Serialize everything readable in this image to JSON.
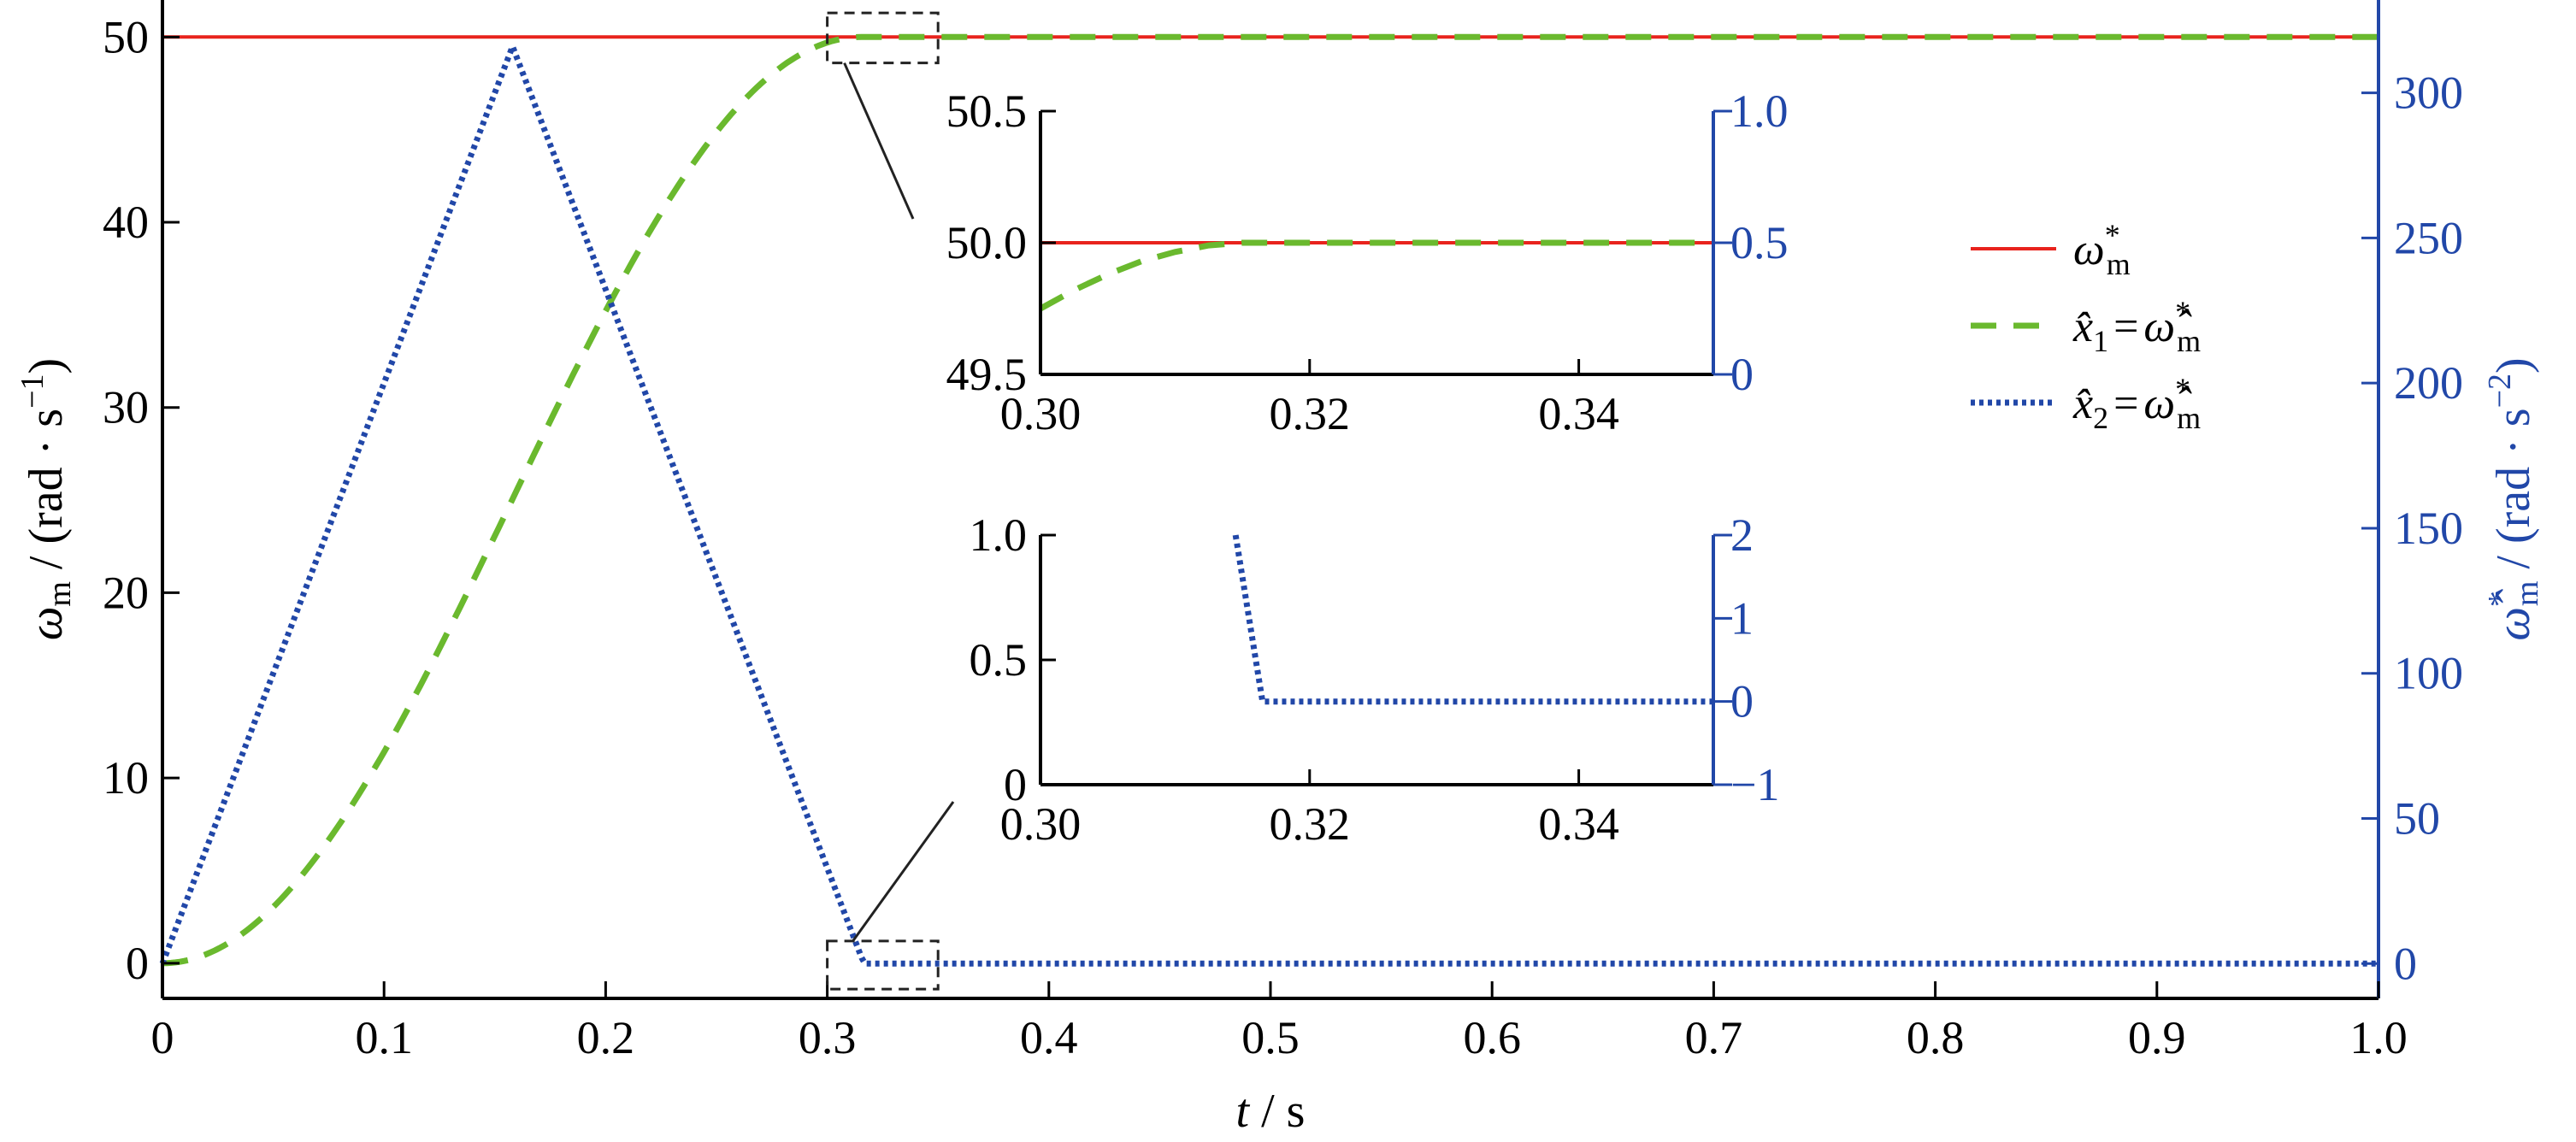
{
  "colors": {
    "ref": "#e8231d",
    "x1": "#6ab92e",
    "x2": "#2147a8",
    "right_axis": "#2147a8",
    "axis": "#000000",
    "box": "#222222"
  },
  "chart_data": [
    {
      "type": "line",
      "role": "main",
      "x_ticks": [
        "0",
        "0.1",
        "0.2",
        "0.3",
        "0.4",
        "0.5",
        "0.6",
        "0.7",
        "0.8",
        "0.9",
        "1.0"
      ],
      "y_ticks": [
        "0",
        "10",
        "20",
        "30",
        "40",
        "50"
      ],
      "y2_ticks": [
        "0",
        "50",
        "100",
        "150",
        "200",
        "250",
        "300"
      ],
      "xlim": [
        0,
        1.0
      ],
      "ylim": [
        -1.9,
        52
      ],
      "y2lim": [
        -12,
        332
      ],
      "grid": false,
      "legend_position": "right, upper-middle",
      "xlabel_var": "t",
      "xlabel_unit": "s",
      "ylabel_var": "ω",
      "ylabel_sub": "m",
      "ylabel_unit": "(rad · s",
      "ylabel_exp": "−1",
      "y2label_var": "ω̂",
      "y2label_sup": "*",
      "y2label_sub": "m",
      "y2label_unit": "(rad · s",
      "y2label_exp": "−2",
      "legend": {
        "ref": {
          "var": "ω",
          "sup": "*",
          "sub": "m"
        },
        "x1": {
          "var": "x̂",
          "sub": "1",
          "eq": "=",
          "rhs": "ω̂",
          "rhs_sup": "*",
          "rhs_sub": "m"
        },
        "x2": {
          "var": "x̂",
          "sub": "2",
          "eq": "=",
          "rhs": "ω̂",
          "rhs_sup": "*",
          "rhs_sub": "m"
        }
      },
      "series": [
        {
          "key": "ref",
          "axis": "left",
          "style": "solid",
          "x": [
            0,
            1.0
          ],
          "y": [
            50,
            50
          ]
        },
        {
          "key": "x1",
          "axis": "left",
          "style": "dashed",
          "profile": "s-curve",
          "x_start": 0.0,
          "x_end": 0.3155,
          "y_start": 0,
          "y_end": 50,
          "hold_to": 1.0
        },
        {
          "key": "x2",
          "axis": "right",
          "style": "dotted",
          "x": [
            0,
            0.158,
            0.3155,
            0.317,
            1.0
          ],
          "y": [
            0,
            316,
            2,
            0,
            0
          ]
        }
      ]
    },
    {
      "type": "line",
      "role": "inset-1",
      "x_ticks": [
        "0.30",
        "0.32",
        "0.34"
      ],
      "y_ticks": [
        "49.5",
        "50.0",
        "50.5"
      ],
      "y2_ticks": [
        "0",
        "0.5",
        "1.0"
      ],
      "xlim": [
        0.3,
        0.35
      ],
      "ylim": [
        49.5,
        50.5
      ],
      "y2lim": [
        0,
        1.0
      ],
      "series": [
        {
          "key": "ref",
          "x": [
            0.3,
            0.35
          ],
          "y": [
            50,
            50
          ]
        },
        {
          "key": "x1",
          "x": [
            0.3,
            0.3025,
            0.305,
            0.3075,
            0.31,
            0.3125,
            0.315,
            0.35
          ],
          "y": [
            49.75,
            49.82,
            49.88,
            49.93,
            49.965,
            49.99,
            50.0,
            50.0
          ]
        }
      ]
    },
    {
      "type": "line",
      "role": "inset-2",
      "x_ticks": [
        "0.30",
        "0.32",
        "0.34"
      ],
      "y_ticks": [
        "0",
        "0.5",
        "1.0"
      ],
      "y2_ticks": [
        "−1",
        "0",
        "1",
        "2"
      ],
      "xlim": [
        0.3,
        0.35
      ],
      "ylim": [
        0,
        1.0
      ],
      "y2lim": [
        -1,
        2
      ],
      "series": [
        {
          "key": "x2",
          "x": [
            0.3145,
            0.3165,
            0.35
          ],
          "y": [
            2.0,
            0,
            0
          ]
        }
      ]
    }
  ]
}
